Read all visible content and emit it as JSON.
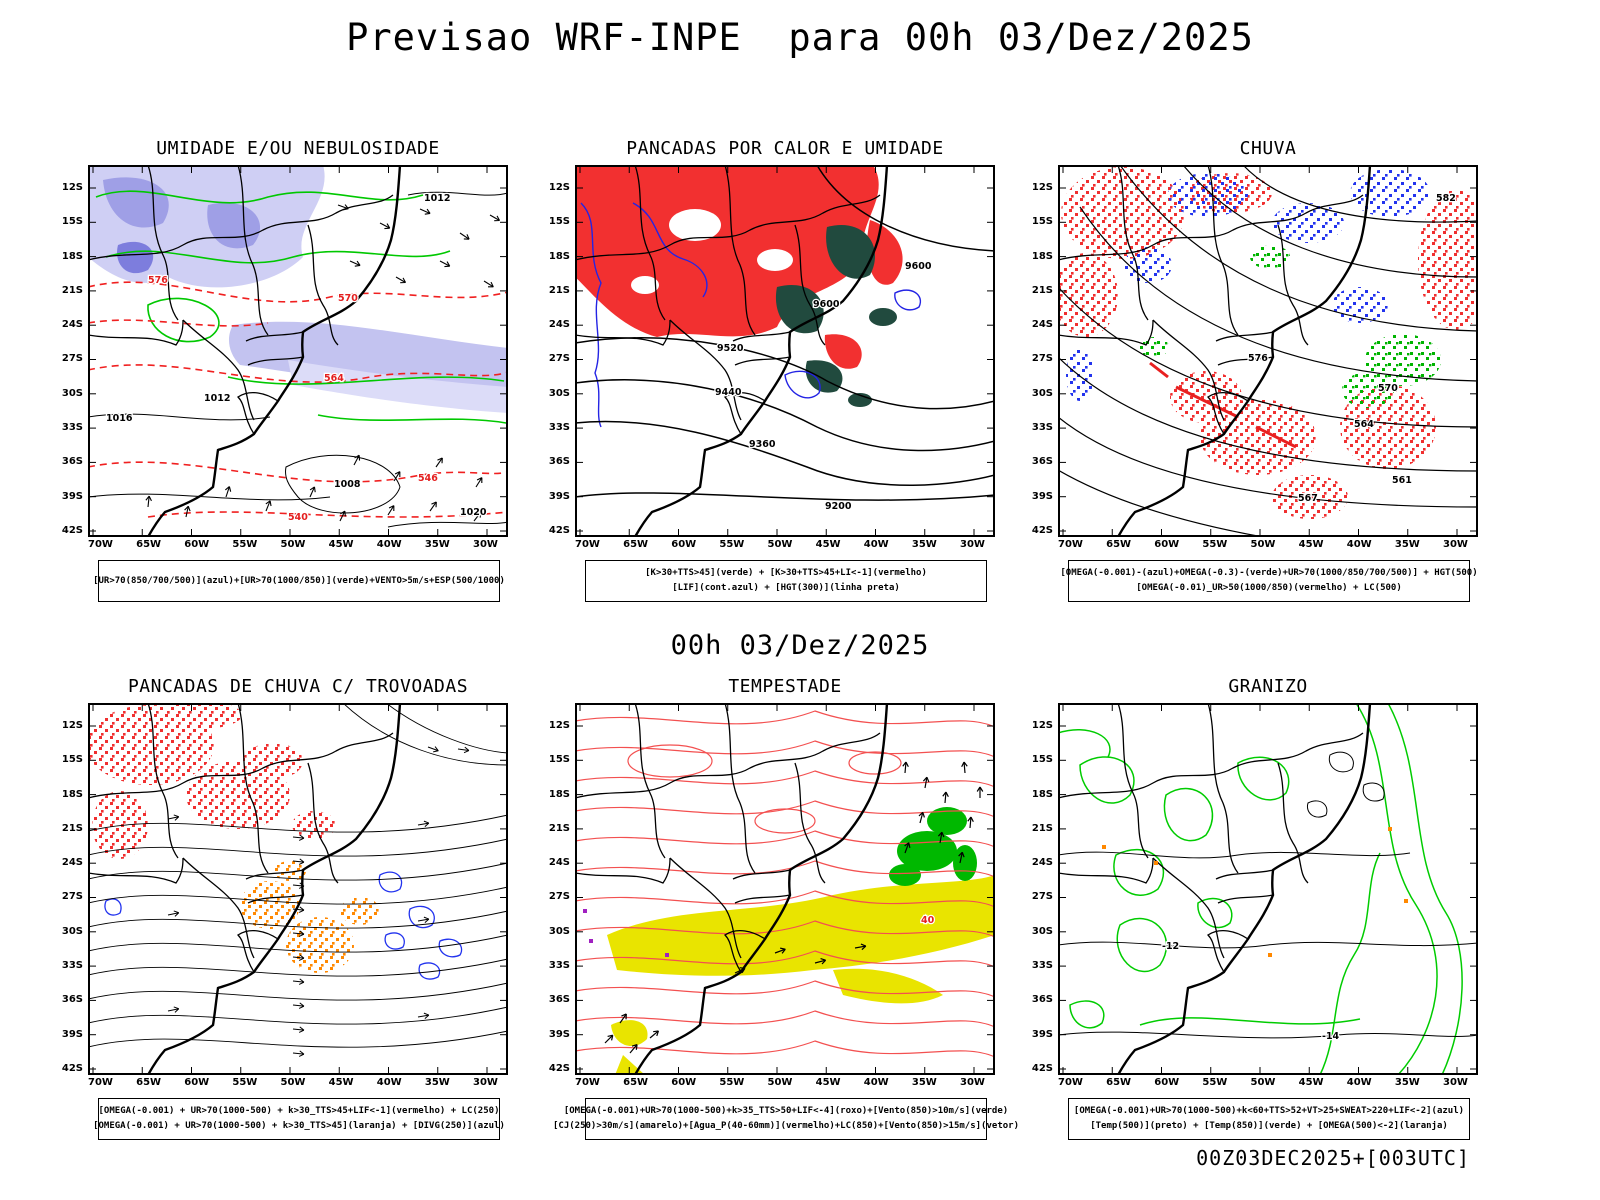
{
  "page": {
    "title": "Previsao WRF-INPE  para 00h 03/Dez/2025",
    "center_timestamp": "00h 03/Dez/2025",
    "footer_stamp": "00Z03DEC2025+[003UTC]"
  },
  "axes": {
    "lat_ticks": [
      "12S",
      "15S",
      "18S",
      "21S",
      "24S",
      "27S",
      "30S",
      "33S",
      "36S",
      "39S",
      "42S"
    ],
    "lon_ticks": [
      "70W",
      "65W",
      "60W",
      "55W",
      "50W",
      "45W",
      "40W",
      "35W",
      "30W"
    ]
  },
  "colors": {
    "humidity_shade": "#c3c3f0",
    "green_contour": "#00c800",
    "red_contour": "#e41f1f",
    "blue_contour": "#2424e4",
    "convection_red_fill": "#f23030",
    "dark_green_fill": "#214a3e",
    "yellow_fill": "#e9e400",
    "orange_fill": "#ff8800"
  },
  "panels": [
    {
      "title": "UMIDADE E/OU NEBULOSIDADE",
      "captions": [
        "[UR>70(850/700/500)](azul)+[UR>70(1000/850)](verde)+VENTO>5m/s+ESP(500/1000)"
      ],
      "labels": [
        "1012",
        "1016",
        "1008",
        "1012",
        "1020",
        "570",
        "576",
        "564",
        "546",
        "540"
      ]
    },
    {
      "title": "PANCADAS POR CALOR E UMIDADE",
      "captions": [
        "[K>30+TTS>45](verde) + [K>30+TTS>45+LI<-1](vermelho)",
        "[LIF](cont.azul) + [HGT(300)](linha preta)"
      ],
      "labels": [
        "9600",
        "9600",
        "9520",
        "9440",
        "9360",
        "9200"
      ]
    },
    {
      "title": "CHUVA",
      "captions": [
        "[OMEGA(-0.001)-(azul)+OMEGA(-0.3)-(verde)+UR>70(1000/850/700/500)] + HGT(500)",
        "[OMEGA(-0.01)_UR>50(1000/850)(vermelho) + LC(500)"
      ],
      "labels": [
        "582",
        "576",
        "570",
        "564",
        "561",
        "567"
      ]
    },
    {
      "title": "PANCADAS DE CHUVA C/ TROVOADAS",
      "captions": [
        "[OMEGA(-0.001) + UR>70(1000-500) + k>30_TTS>45+LIF<-1](vermelho) + LC(250)",
        "[OMEGA(-0.001) + UR>70(1000-500) + k>30_TTS>45](laranja) + [DIVG(250)](azul)"
      ],
      "labels": []
    },
    {
      "title": "TEMPESTADE",
      "captions": [
        "[OMEGA(-0.001)+UR>70(1000-500)+k>35_TTS>50+LIF<-4](roxo)+[Vento(850)>10m/s](verde)",
        "[CJ(250)>30m/s](amarelo)+[Agua_P(40-60mm)](vermelho)+LC(850)+[Vento(850)>15m/s](vetor)"
      ],
      "labels": [
        "40"
      ]
    },
    {
      "title": "GRANIZO",
      "captions": [
        "[OMEGA(-0.001)+UR>70(1000-500)+k<60+TTS>52+VT>25+SWEAT>220+LIF<-2](azul)",
        "[Temp(500)](preto) + [Temp(850)](verde) + [OMEGA(500)<-2](laranja)"
      ],
      "labels": [
        "-12",
        "-14"
      ]
    }
  ]
}
